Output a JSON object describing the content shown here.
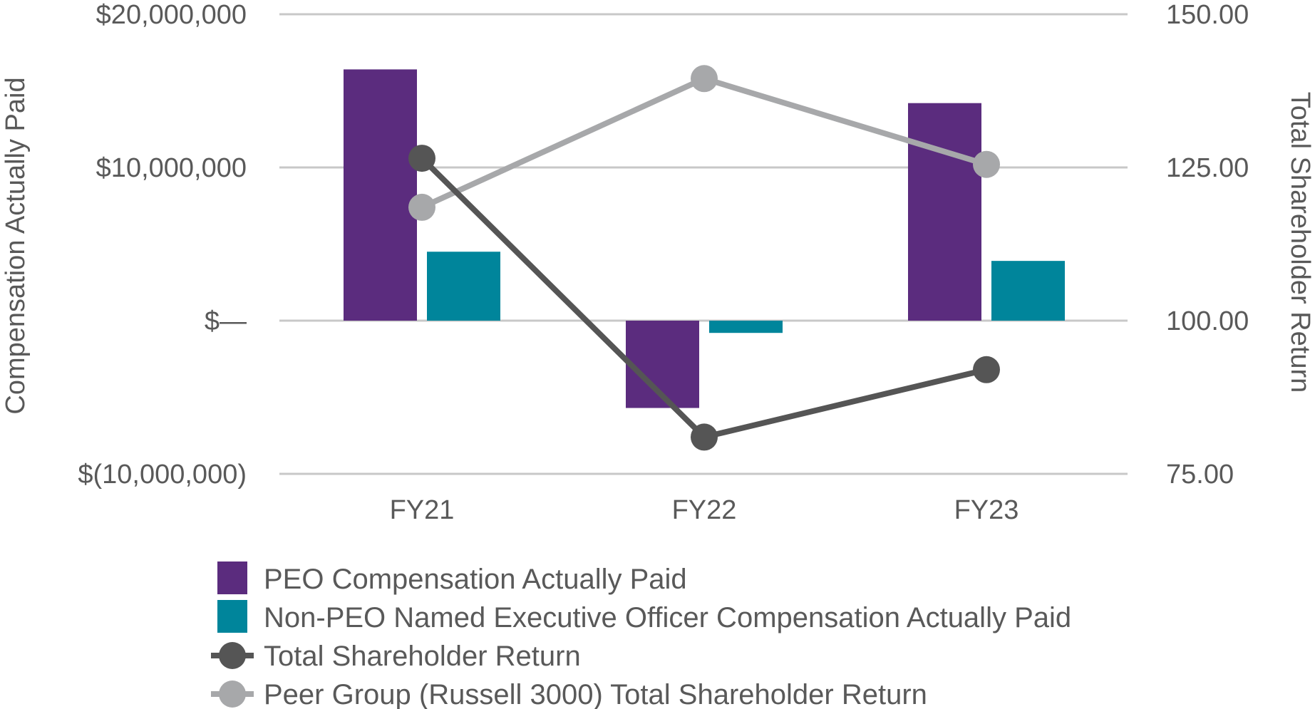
{
  "chart_data": {
    "type": "bar+line",
    "categories": [
      "FY21",
      "FY22",
      "FY23"
    ],
    "left_axis": {
      "label": "Compensation Actually Paid",
      "range": [
        -10000000,
        20000000
      ],
      "ticks": [
        20000000,
        10000000,
        0,
        -10000000
      ],
      "tick_labels": [
        "$20,000,000",
        "$10,000,000",
        "$—",
        "$(10,000,000)"
      ]
    },
    "right_axis": {
      "label": "Total Shareholder Return",
      "range": [
        75,
        150
      ],
      "ticks": [
        150,
        125,
        100,
        75
      ],
      "tick_labels": [
        "150.00",
        "125.00",
        "100.00",
        "75.00"
      ]
    },
    "series": [
      {
        "name": "PEO Compensation Actually Paid",
        "kind": "bar",
        "axis": "left",
        "color": "#5b2c7e",
        "values": [
          16400000,
          -5700000,
          14200000
        ]
      },
      {
        "name": "Non-PEO Named Executive Officer Compensation Actually Paid",
        "kind": "bar",
        "axis": "left",
        "color": "#00859b",
        "values": [
          4500000,
          -800000,
          3900000
        ]
      },
      {
        "name": "Total Shareholder Return",
        "kind": "line",
        "axis": "right",
        "color": "#555555",
        "values": [
          126.5,
          81,
          92
        ]
      },
      {
        "name": "Peer Group (Russell 3000) Total Shareholder Return",
        "kind": "line",
        "axis": "right",
        "color": "#a7a8aa",
        "values": [
          118.5,
          139.5,
          125.5
        ]
      }
    ],
    "grid": true,
    "legend_position": "bottom-center"
  }
}
